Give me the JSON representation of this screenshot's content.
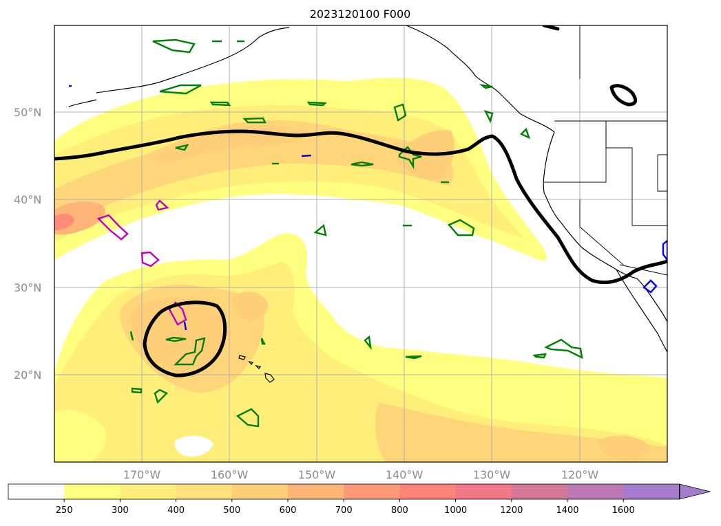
{
  "title": "2023120100 F000",
  "lat_labels": [
    "50°N",
    "40°N",
    "30°N",
    "20°N"
  ],
  "lon_labels": [
    "170°W",
    "160°W",
    "150°W",
    "140°W",
    "130°W",
    "120°W"
  ],
  "colorbar": {
    "ticks": [
      "250",
      "300",
      "400",
      "500",
      "600",
      "700",
      "800",
      "1000",
      "1200",
      "1400",
      "1600"
    ],
    "colors": [
      "#ffffff",
      "#ffff80",
      "#ffef7a",
      "#ffe07a",
      "#ffce78",
      "#ffb478",
      "#ff9a78",
      "#ff8478",
      "#f07888",
      "#d47898",
      "#bb78b4",
      "#a47ccc"
    ],
    "extend": "max"
  },
  "map": {
    "lat_range": [
      10,
      60
    ],
    "lon_range": [
      -180,
      -110
    ],
    "grid": true,
    "contour_colors": {
      "jet_stream": "#000000",
      "green_feature": "#008000",
      "magenta_feature": "#c000c0",
      "blue_feature": "#0000ff"
    }
  }
}
